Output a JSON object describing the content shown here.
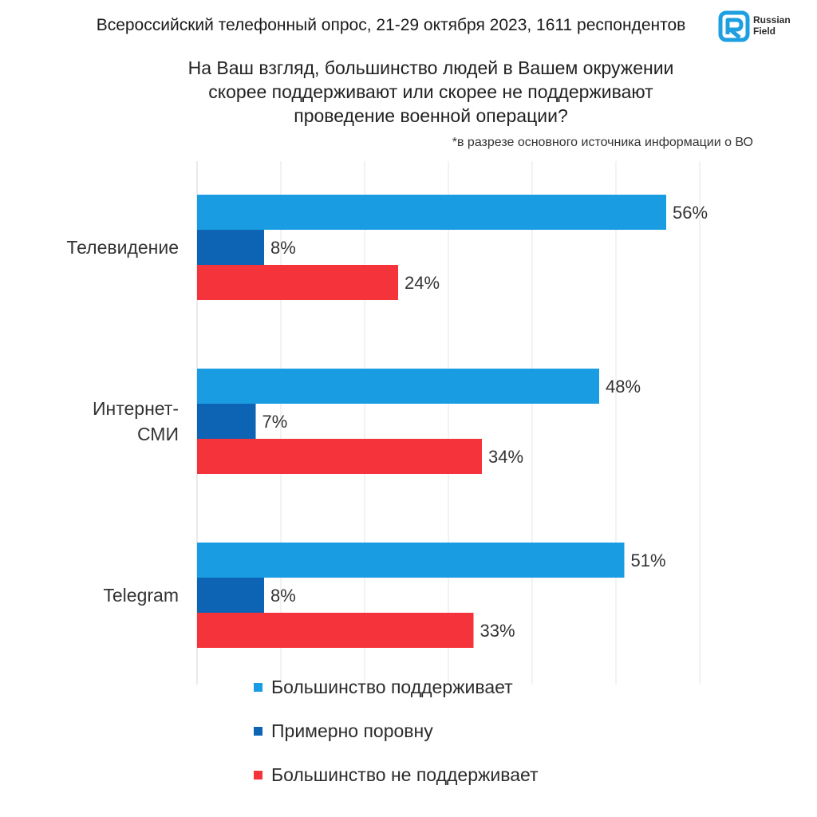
{
  "header": {
    "survey_line": "Всероссийский телефонный опрос, 21-29 октября 2023, 1611 респондентов",
    "logo_line1": "Russian",
    "logo_line2": "Field",
    "logo_color": "#1d9fe0"
  },
  "question": {
    "line1": "На Ваш взгляд, большинство людей в Вашем окружении",
    "line2": "скорее поддерживают или скорее не поддерживают",
    "line3": "проведение военной операции?"
  },
  "footnote": "*в разрезе основного источника информации о ВО",
  "chart_data": {
    "type": "bar",
    "orientation": "horizontal",
    "categories": [
      [
        "Телевидение"
      ],
      [
        "Интернет-",
        "СМИ"
      ],
      [
        "Telegram"
      ]
    ],
    "series": [
      {
        "name": "Большинство поддерживает",
        "color": "#1a9ce2",
        "values": [
          56,
          48,
          51
        ],
        "labels": [
          "56%",
          "48%",
          "51%"
        ]
      },
      {
        "name": "Примерно поровну",
        "color": "#0d64b4",
        "values": [
          8,
          7,
          8
        ],
        "labels": [
          "8%",
          "7%",
          "8%"
        ]
      },
      {
        "name": "Большинство не поддерживает",
        "color": "#f4333a",
        "values": [
          24,
          34,
          33
        ],
        "labels": [
          "24%",
          "34%",
          "33%"
        ]
      }
    ],
    "xlim": [
      0,
      60
    ],
    "grid": true,
    "legend_position": "bottom"
  }
}
